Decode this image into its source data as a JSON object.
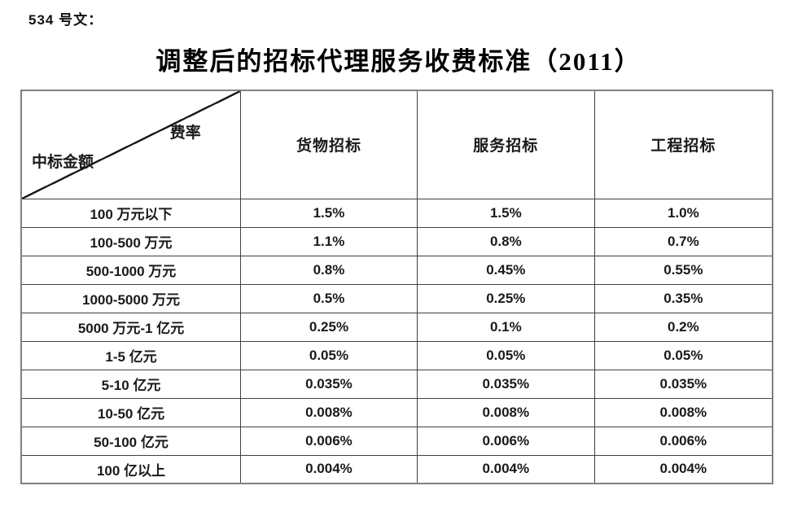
{
  "doc": {
    "ref_label": "534 号文：",
    "title": "调整后的招标代理服务收费标准（2011）"
  },
  "table": {
    "corner": {
      "top_right": "费率",
      "bottom_left": "中标金额"
    },
    "columns": [
      "货物招标",
      "服务招标",
      "工程招标"
    ],
    "rows": [
      {
        "range": "100 万元以下",
        "values": [
          "1.5%",
          "1.5%",
          "1.0%"
        ]
      },
      {
        "range": "100-500 万元",
        "values": [
          "1.1%",
          "0.8%",
          "0.7%"
        ]
      },
      {
        "range": "500-1000 万元",
        "values": [
          "0.8%",
          "0.45%",
          "0.55%"
        ]
      },
      {
        "range": "1000-5000 万元",
        "values": [
          "0.5%",
          "0.25%",
          "0.35%"
        ]
      },
      {
        "range": "5000 万元-1 亿元",
        "values": [
          "0.25%",
          "0.1%",
          "0.2%"
        ]
      },
      {
        "range": "1-5 亿元",
        "values": [
          "0.05%",
          "0.05%",
          "0.05%"
        ]
      },
      {
        "range": "5-10 亿元",
        "values": [
          "0.035%",
          "0.035%",
          "0.035%"
        ]
      },
      {
        "range": "10-50 亿元",
        "values": [
          "0.008%",
          "0.008%",
          "0.008%"
        ]
      },
      {
        "range": "50-100 亿元",
        "values": [
          "0.006%",
          "0.006%",
          "0.006%"
        ]
      },
      {
        "range": "100 亿以上",
        "values": [
          "0.004%",
          "0.004%",
          "0.004%"
        ]
      }
    ]
  }
}
